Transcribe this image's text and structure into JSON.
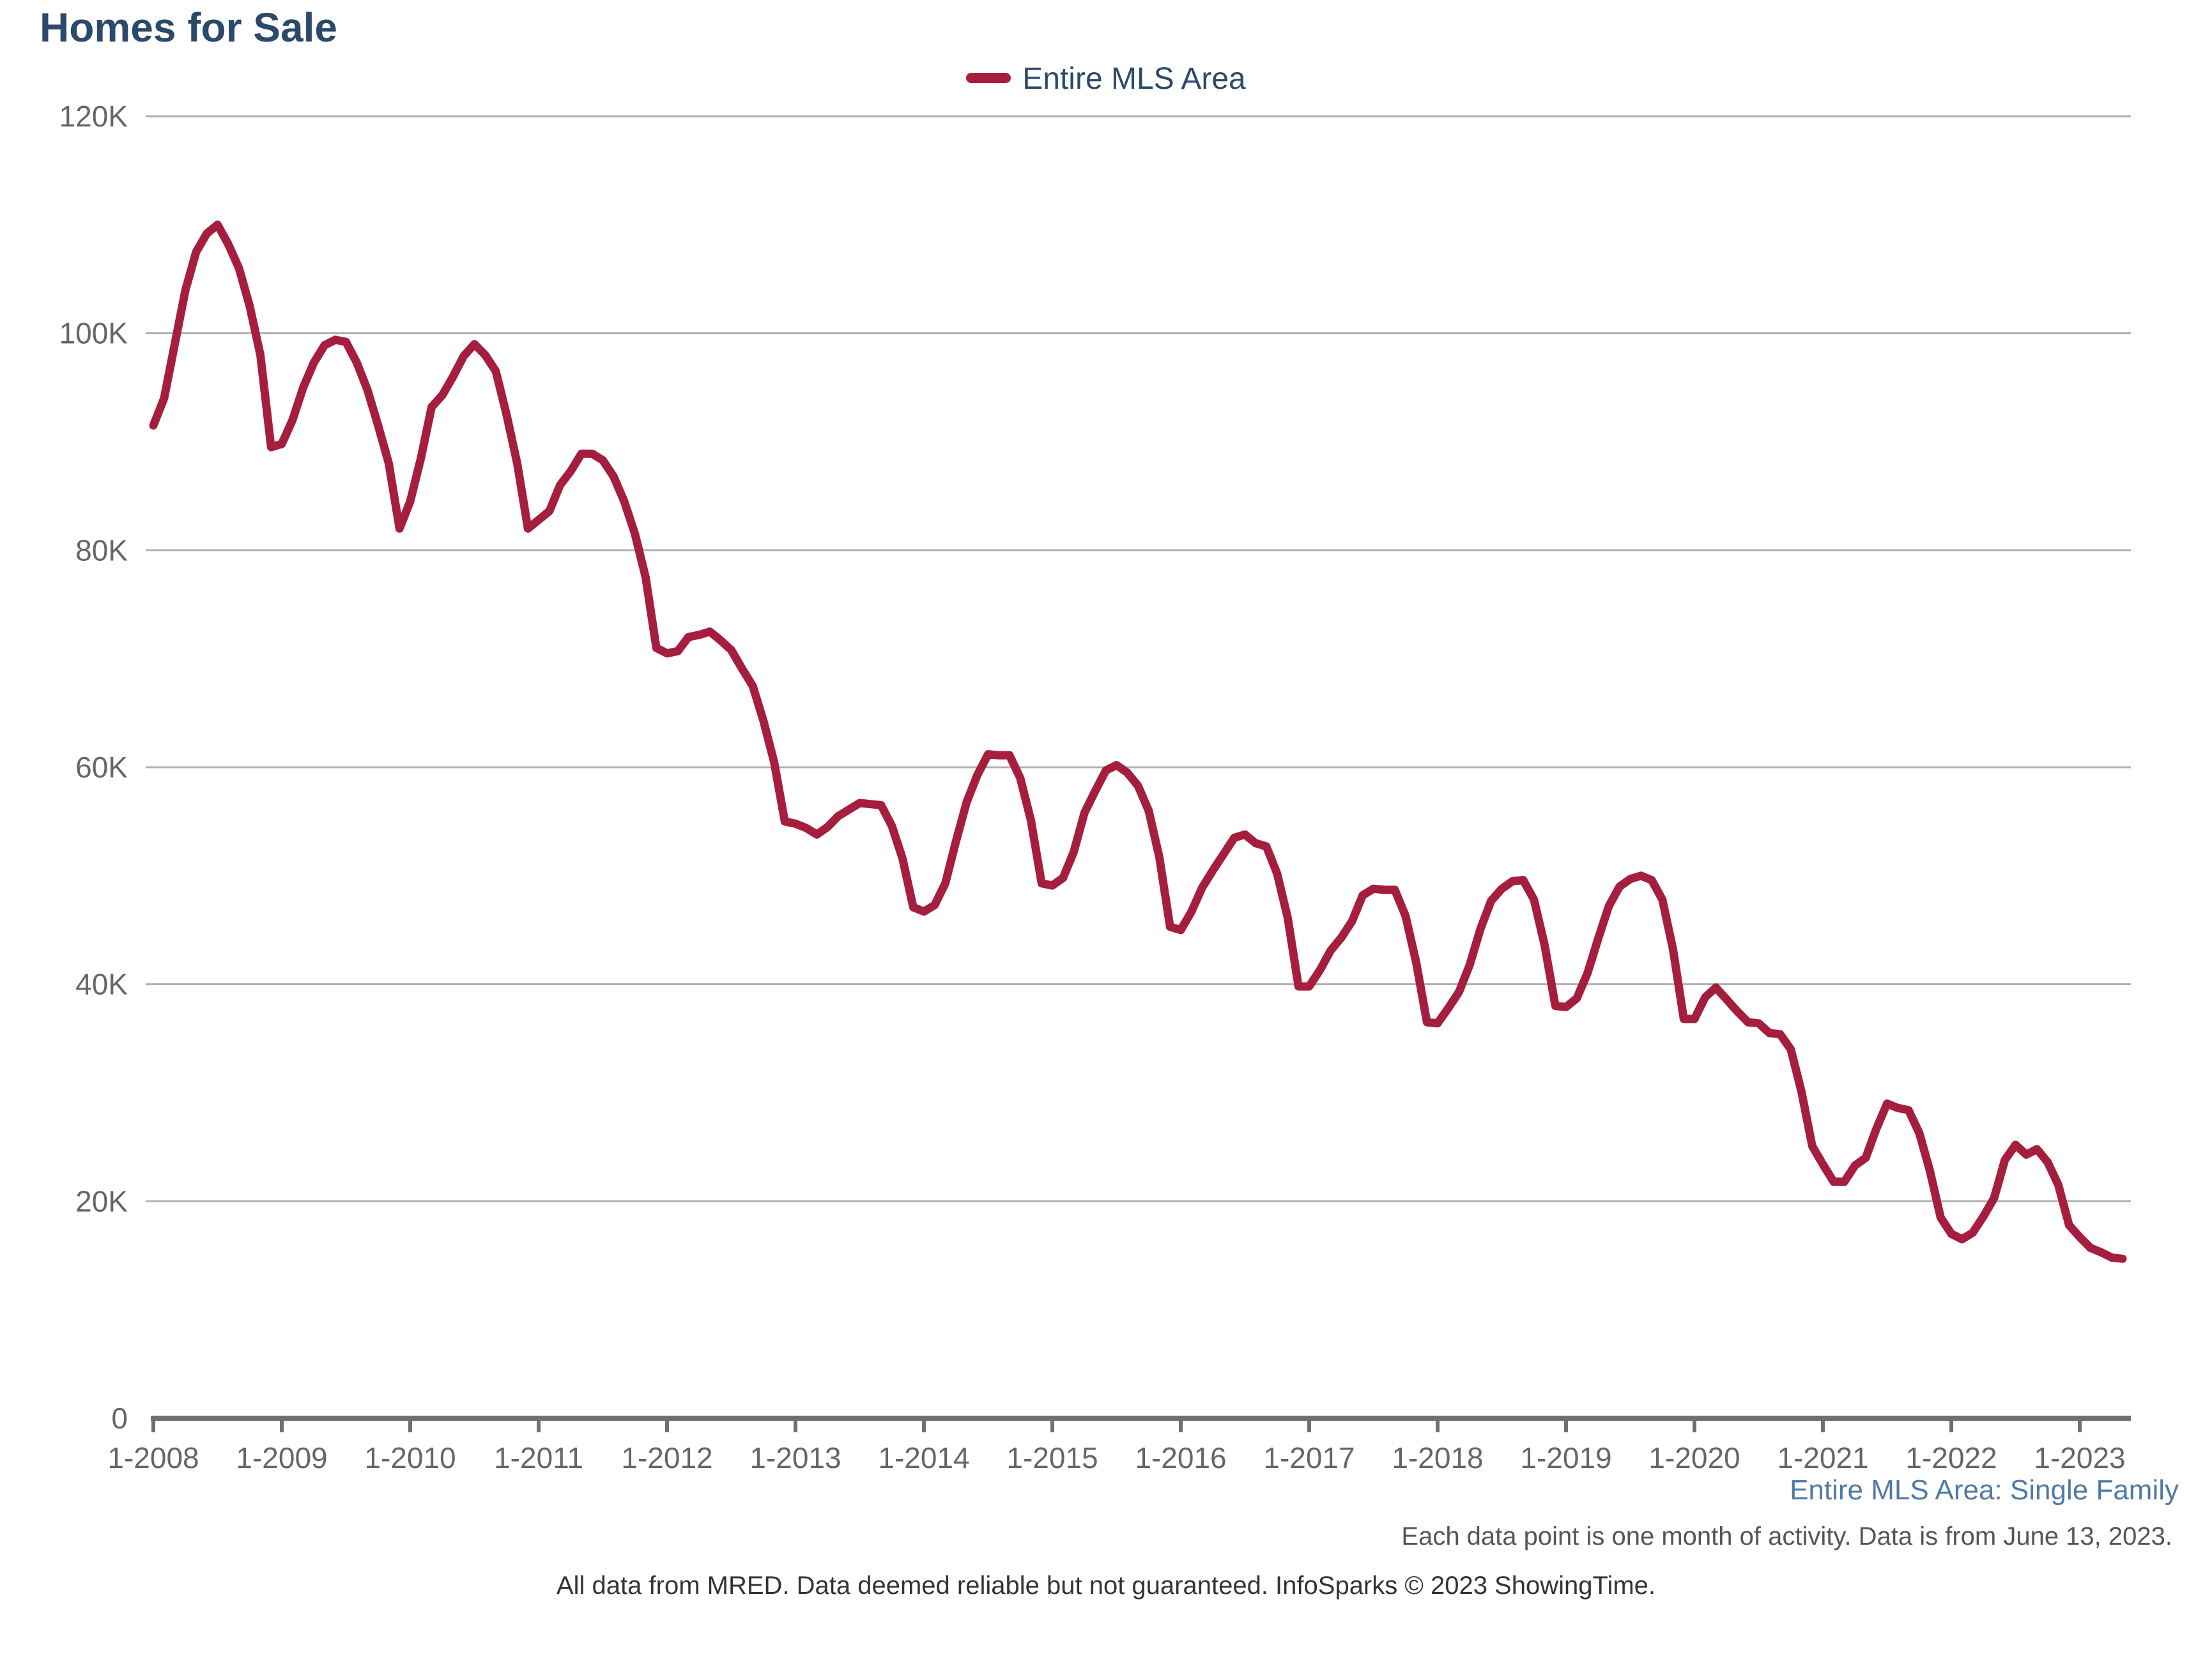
{
  "header": {
    "title": "Homes for Sale"
  },
  "legend": {
    "label": "Entire MLS Area"
  },
  "footer": {
    "subtitle": "Entire MLS Area: Single Family",
    "note": "Each data point is one month of activity. Data is from June 13, 2023.",
    "credits": "All data from MRED. Data deemed reliable but not guaranteed. InfoSparks © 2023 ShowingTime."
  },
  "colors": {
    "series": "#a61e3d",
    "title": "#2b4a6b",
    "gridline": "#b0b0b0",
    "axis": "#707070",
    "tick_text": "#666666"
  },
  "chart_data": {
    "type": "line",
    "title": "Homes for Sale",
    "xlabel": "",
    "ylabel": "",
    "x_start": "2008-01",
    "x_end": "2023-05",
    "x_ticks": [
      "1-2008",
      "1-2009",
      "1-2010",
      "1-2011",
      "1-2012",
      "1-2013",
      "1-2014",
      "1-2015",
      "1-2016",
      "1-2017",
      "1-2018",
      "1-2019",
      "1-2020",
      "1-2021",
      "1-2022",
      "1-2023"
    ],
    "y_ticks": [
      "0",
      "20K",
      "40K",
      "60K",
      "80K",
      "100K",
      "120K"
    ],
    "y_tick_values": [
      0,
      20000,
      40000,
      60000,
      80000,
      100000,
      120000
    ],
    "ylim": [
      0,
      120000
    ],
    "grid": true,
    "legend_position": "top-center",
    "series": [
      {
        "name": "Entire MLS Area",
        "values": [
          91500,
          94000,
          99000,
          104000,
          107500,
          109200,
          110000,
          108200,
          106000,
          102500,
          98000,
          89500,
          89800,
          92000,
          95000,
          97300,
          98900,
          99400,
          99200,
          97300,
          94800,
          91500,
          88000,
          82000,
          84500,
          88500,
          93200,
          94300,
          96000,
          97900,
          99000,
          98000,
          96500,
          92500,
          88000,
          82000,
          82800,
          83600,
          86000,
          87300,
          88900,
          88900,
          88300,
          86800,
          84500,
          81500,
          77500,
          71000,
          70500,
          70700,
          72000,
          72200,
          72500,
          71700,
          70800,
          69100,
          67500,
          64300,
          60500,
          55000,
          54800,
          54400,
          53800,
          54500,
          55500,
          56100,
          56700,
          56600,
          56500,
          54600,
          51600,
          47100,
          46700,
          47300,
          49300,
          53200,
          56800,
          59300,
          61200,
          61100,
          61100,
          59000,
          55100,
          49300,
          49100,
          49800,
          52200,
          55800,
          57800,
          59700,
          60200,
          59500,
          58300,
          56000,
          51700,
          45300,
          45000,
          46700,
          48900,
          50500,
          52000,
          53500,
          53800,
          53000,
          52700,
          50200,
          46100,
          39800,
          39800,
          41300,
          43100,
          44300,
          45800,
          48200,
          48800,
          48700,
          48700,
          46300,
          42000,
          36500,
          36400,
          37800,
          39300,
          41800,
          45100,
          47700,
          48800,
          49500,
          49600,
          47800,
          43600,
          38000,
          37900,
          38700,
          41000,
          44200,
          47200,
          49000,
          49700,
          50000,
          49600,
          47800,
          43200,
          36800,
          36800,
          38800,
          39700,
          38600,
          37500,
          36500,
          36400,
          35500,
          35400,
          34000,
          30100,
          25100,
          23400,
          21800,
          21800,
          23300,
          24000,
          26700,
          29000,
          28600,
          28400,
          26300,
          22800,
          18500,
          17000,
          16500,
          17100,
          18600,
          20300,
          23800,
          25200,
          24300,
          24800,
          23600,
          21500,
          17800,
          16700,
          15700,
          15300,
          14800,
          14700
        ]
      }
    ]
  }
}
